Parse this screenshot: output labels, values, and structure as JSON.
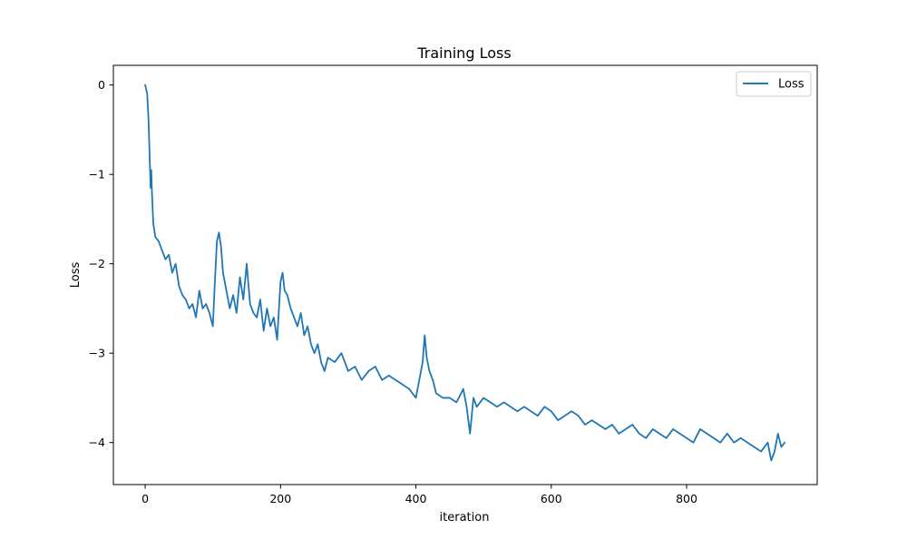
{
  "chart_data": {
    "type": "line",
    "title": "Training Loss",
    "xlabel": "iteration",
    "ylabel": "Loss",
    "xlim": [
      -47,
      993
    ],
    "ylim": [
      -4.47,
      0.22
    ],
    "xticks": [
      0,
      200,
      400,
      600,
      800
    ],
    "xtick_labels": [
      "0",
      "200",
      "400",
      "600",
      "800"
    ],
    "yticks": [
      0,
      -1,
      -2,
      -3,
      -4
    ],
    "ytick_labels": [
      "0",
      "−1",
      "−2",
      "−3",
      "−4"
    ],
    "grid": false,
    "legend": {
      "position": "top-right",
      "entries": [
        "Loss"
      ]
    },
    "color": "#1f77b4",
    "series": [
      {
        "name": "Loss",
        "x": [
          0,
          3,
          5,
          7,
          8,
          9,
          10,
          12,
          15,
          20,
          25,
          30,
          35,
          40,
          45,
          50,
          55,
          60,
          65,
          70,
          75,
          80,
          85,
          90,
          95,
          100,
          103,
          106,
          109,
          112,
          115,
          120,
          125,
          130,
          135,
          140,
          145,
          150,
          155,
          160,
          165,
          170,
          175,
          180,
          185,
          190,
          195,
          200,
          203,
          206,
          210,
          215,
          220,
          225,
          230,
          235,
          240,
          245,
          250,
          255,
          260,
          265,
          270,
          280,
          290,
          300,
          310,
          320,
          330,
          340,
          350,
          360,
          370,
          380,
          390,
          400,
          405,
          410,
          413,
          416,
          420,
          425,
          430,
          440,
          450,
          460,
          470,
          475,
          480,
          485,
          490,
          500,
          510,
          520,
          530,
          540,
          550,
          560,
          570,
          580,
          590,
          600,
          610,
          620,
          630,
          640,
          650,
          660,
          670,
          680,
          690,
          700,
          710,
          720,
          730,
          740,
          750,
          760,
          770,
          780,
          790,
          800,
          810,
          820,
          830,
          840,
          850,
          860,
          870,
          880,
          890,
          900,
          910,
          920,
          925,
          930,
          935,
          940,
          945
        ],
        "y": [
          0,
          -0.1,
          -0.4,
          -0.9,
          -1.15,
          -0.95,
          -1.2,
          -1.55,
          -1.7,
          -1.75,
          -1.85,
          -1.95,
          -1.9,
          -2.1,
          -2.0,
          -2.25,
          -2.35,
          -2.4,
          -2.5,
          -2.45,
          -2.6,
          -2.3,
          -2.5,
          -2.45,
          -2.55,
          -2.7,
          -2.2,
          -1.75,
          -1.65,
          -1.8,
          -2.1,
          -2.3,
          -2.5,
          -2.35,
          -2.55,
          -2.15,
          -2.4,
          -2.0,
          -2.45,
          -2.55,
          -2.6,
          -2.4,
          -2.75,
          -2.5,
          -2.7,
          -2.6,
          -2.85,
          -2.2,
          -2.1,
          -2.3,
          -2.35,
          -2.5,
          -2.6,
          -2.7,
          -2.55,
          -2.8,
          -2.7,
          -2.9,
          -3.0,
          -2.9,
          -3.1,
          -3.2,
          -3.05,
          -3.1,
          -3.0,
          -3.2,
          -3.15,
          -3.3,
          -3.2,
          -3.15,
          -3.3,
          -3.25,
          -3.3,
          -3.35,
          -3.4,
          -3.5,
          -3.3,
          -3.1,
          -2.8,
          -3.05,
          -3.2,
          -3.3,
          -3.45,
          -3.5,
          -3.5,
          -3.55,
          -3.4,
          -3.6,
          -3.9,
          -3.5,
          -3.6,
          -3.5,
          -3.55,
          -3.6,
          -3.55,
          -3.6,
          -3.65,
          -3.6,
          -3.65,
          -3.7,
          -3.6,
          -3.65,
          -3.75,
          -3.7,
          -3.65,
          -3.7,
          -3.8,
          -3.75,
          -3.8,
          -3.85,
          -3.8,
          -3.9,
          -3.85,
          -3.8,
          -3.9,
          -3.95,
          -3.85,
          -3.9,
          -3.95,
          -3.85,
          -3.9,
          -3.95,
          -4.0,
          -3.85,
          -3.9,
          -3.95,
          -4.0,
          -3.9,
          -4.0,
          -3.95,
          -4.0,
          -4.05,
          -4.1,
          -4.0,
          -4.2,
          -4.1,
          -3.9,
          -4.05,
          -4.0
        ]
      }
    ]
  }
}
